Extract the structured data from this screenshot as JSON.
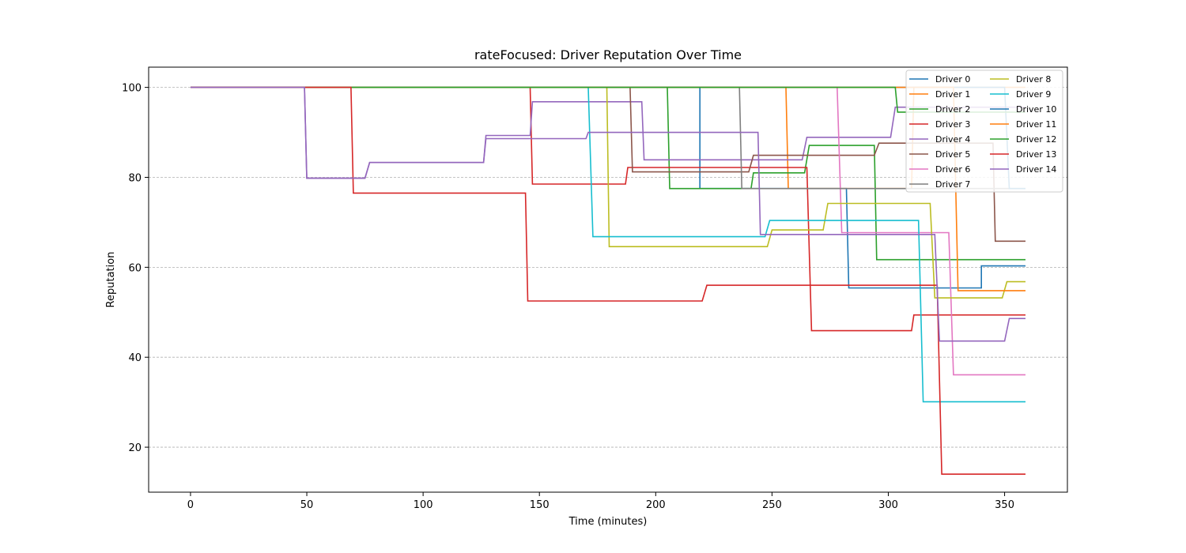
{
  "chart_data": {
    "type": "line",
    "title": "rateFocused: Driver Reputation Over Time",
    "xlabel": "Time (minutes)",
    "ylabel": "Reputation",
    "xlim": [
      -18,
      377
    ],
    "ylim": [
      10,
      104.5
    ],
    "xticks": [
      0,
      50,
      100,
      150,
      200,
      250,
      300,
      350
    ],
    "yticks": [
      20,
      40,
      60,
      80,
      100
    ],
    "grid": "y-dashed",
    "legend": {
      "placement": "top-right",
      "columns": 2
    },
    "series": [
      {
        "name": "Driver 0",
        "color": "#1f77b4",
        "points": [
          [
            0,
            100
          ],
          [
            219,
            100
          ],
          [
            219,
            77.5
          ],
          [
            282,
            77.5
          ],
          [
            283,
            55.4
          ],
          [
            340,
            55.4
          ],
          [
            340,
            60.3
          ],
          [
            359,
            60.3
          ]
        ]
      },
      {
        "name": "Driver 1",
        "color": "#ff7f0e",
        "points": [
          [
            0,
            100
          ],
          [
            256,
            100
          ],
          [
            257,
            77.5
          ],
          [
            310,
            77.5
          ],
          [
            311,
            100
          ],
          [
            359,
            100
          ]
        ]
      },
      {
        "name": "Driver 2",
        "color": "#2ca02c",
        "points": [
          [
            0,
            100
          ],
          [
            205,
            100
          ],
          [
            206,
            77.5
          ],
          [
            241,
            77.5
          ],
          [
            242,
            81
          ],
          [
            264,
            81
          ],
          [
            266,
            87.1
          ],
          [
            294,
            87.1
          ],
          [
            295,
            61.7
          ],
          [
            359,
            61.7
          ]
        ]
      },
      {
        "name": "Driver 3",
        "color": "#d62728",
        "points": [
          [
            0,
            100
          ],
          [
            146,
            100
          ],
          [
            147,
            78.5
          ],
          [
            187,
            78.5
          ],
          [
            188,
            82.2
          ],
          [
            265,
            82.2
          ],
          [
            267,
            45.9
          ],
          [
            310,
            45.9
          ],
          [
            311,
            49.4
          ],
          [
            359,
            49.4
          ]
        ]
      },
      {
        "name": "Driver 4",
        "color": "#9467bd",
        "points": [
          [
            0,
            100
          ],
          [
            49,
            100
          ],
          [
            50,
            79.8
          ],
          [
            75,
            79.8
          ],
          [
            77,
            83.3
          ],
          [
            126,
            83.3
          ],
          [
            127,
            89.3
          ],
          [
            146,
            89.3
          ],
          [
            147,
            96.8
          ],
          [
            194,
            96.8
          ],
          [
            195,
            83.9
          ],
          [
            263,
            83.9
          ],
          [
            265,
            88.9
          ],
          [
            301,
            88.9
          ],
          [
            303,
            95.6
          ],
          [
            359,
            95.6
          ]
        ]
      },
      {
        "name": "Driver 5",
        "color": "#8c564b",
        "points": [
          [
            0,
            100
          ],
          [
            189,
            100
          ],
          [
            190,
            81.2
          ],
          [
            240,
            81.2
          ],
          [
            242,
            84.9
          ],
          [
            294,
            84.9
          ],
          [
            296,
            87.6
          ],
          [
            345,
            87.6
          ],
          [
            346,
            65.8
          ],
          [
            359,
            65.8
          ]
        ]
      },
      {
        "name": "Driver 6",
        "color": "#e377c2",
        "points": [
          [
            0,
            100
          ],
          [
            278,
            100
          ],
          [
            280,
            67.7
          ],
          [
            326,
            67.7
          ],
          [
            328,
            36.1
          ],
          [
            359,
            36.1
          ]
        ]
      },
      {
        "name": "Driver 7",
        "color": "#7f7f7f",
        "points": [
          [
            0,
            100
          ],
          [
            236,
            100
          ],
          [
            237,
            77.5
          ],
          [
            359,
            77.5
          ]
        ]
      },
      {
        "name": "Driver 8",
        "color": "#bcbd22",
        "points": [
          [
            0,
            100
          ],
          [
            179,
            100
          ],
          [
            180,
            64.6
          ],
          [
            248,
            64.6
          ],
          [
            250,
            68.3
          ],
          [
            272,
            68.3
          ],
          [
            274,
            74.2
          ],
          [
            318,
            74.2
          ],
          [
            320,
            53.2
          ],
          [
            349,
            53.2
          ],
          [
            351,
            56.8
          ],
          [
            359,
            56.8
          ]
        ]
      },
      {
        "name": "Driver 9",
        "color": "#17becf",
        "points": [
          [
            0,
            100
          ],
          [
            171,
            100
          ],
          [
            173,
            66.8
          ],
          [
            247,
            66.8
          ],
          [
            249,
            70.4
          ],
          [
            313,
            70.4
          ],
          [
            315,
            30.1
          ],
          [
            359,
            30.1
          ]
        ]
      },
      {
        "name": "Driver 10",
        "color": "#1f77b4",
        "points": [
          [
            0,
            100
          ],
          [
            350,
            100
          ],
          [
            352,
            77.5
          ],
          [
            359,
            77.5
          ]
        ]
      },
      {
        "name": "Driver 11",
        "color": "#ff7f0e",
        "points": [
          [
            0,
            100
          ],
          [
            328,
            100
          ],
          [
            330,
            54.8
          ],
          [
            359,
            54.8
          ]
        ]
      },
      {
        "name": "Driver 12",
        "color": "#2ca02c",
        "points": [
          [
            0,
            100
          ],
          [
            303,
            100
          ],
          [
            304,
            94.5
          ],
          [
            359,
            94.5
          ]
        ]
      },
      {
        "name": "Driver 13",
        "color": "#d62728",
        "points": [
          [
            0,
            100
          ],
          [
            69,
            100
          ],
          [
            70,
            76.5
          ],
          [
            144,
            76.5
          ],
          [
            145,
            52.5
          ],
          [
            220,
            52.5
          ],
          [
            222,
            56
          ],
          [
            321,
            56
          ],
          [
            323,
            14
          ],
          [
            359,
            14
          ]
        ]
      },
      {
        "name": "Driver 14",
        "color": "#9467bd",
        "points": [
          [
            0,
            100
          ],
          [
            49,
            100
          ],
          [
            50,
            79.8
          ],
          [
            75,
            79.8
          ],
          [
            77,
            83.3
          ],
          [
            126,
            83.3
          ],
          [
            127,
            88.6
          ],
          [
            170,
            88.6
          ],
          [
            171,
            90
          ],
          [
            244,
            90
          ],
          [
            245,
            67.3
          ],
          [
            320,
            67.3
          ],
          [
            322,
            43.6
          ],
          [
            350,
            43.6
          ],
          [
            352,
            48.6
          ],
          [
            359,
            48.6
          ]
        ]
      }
    ]
  }
}
